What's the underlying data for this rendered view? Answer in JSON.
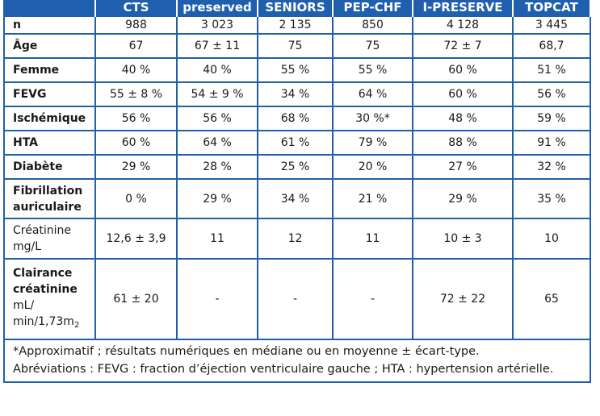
{
  "header": {
    "col1": "CTS",
    "col2_line1": "",
    "col2_line2": "preserved",
    "col3": "SENIORS",
    "col4": "PEP-CHF",
    "col5": "I-PRESERVE",
    "col6": "TOPCAT"
  },
  "rows": [
    {
      "label": "n",
      "values": [
        "988",
        "3 023",
        "2 135",
        "850",
        "4 128",
        "3 445"
      ]
    },
    {
      "label": "Âge",
      "values": [
        "67",
        "67 ± 11",
        "75",
        "75",
        "72 ± 7",
        "68,7"
      ]
    },
    {
      "label": "Femme",
      "values": [
        "40 %",
        "40 %",
        "55 %",
        "55 %",
        "60 %",
        "51 %"
      ]
    },
    {
      "label": "FEVG",
      "values": [
        "55 ± 8 %",
        "54 ± 9 %",
        "34 %",
        "64 %",
        "60 %",
        "56 %"
      ]
    },
    {
      "label": "Ischémique",
      "values": [
        "56 %",
        "56 %",
        "68 %",
        "30 %*",
        "48 %",
        "59 %"
      ]
    },
    {
      "label": "HTA",
      "values": [
        "60 %",
        "64 %",
        "61 %",
        "79 %",
        "88 %",
        "91 %"
      ]
    },
    {
      "label": "Diabète",
      "values": [
        "29 %",
        "28 %",
        "25 %",
        "20 %",
        "27 %",
        "32 %"
      ]
    },
    {
      "label_line1": "Fibrillation",
      "label_line2": "auriculaire",
      "values": [
        "0 %",
        "29 %",
        "34 %",
        "21 %",
        "29 %",
        "35 %"
      ]
    },
    {
      "label_line1": "Créatinine",
      "label_line2": "mg/L",
      "values": [
        "12,6 ± 3,9",
        "11",
        "12",
        "11",
        "10 ± 3",
        "10"
      ]
    },
    {
      "label_line1": "Clairance",
      "label_line2": "créatinine",
      "label_line3": "mL/",
      "label_line4": "min/1,73m",
      "label_sub": "2",
      "values": [
        "61 ± 20",
        "-",
        "-",
        "-",
        "72 ± 22",
        "65"
      ]
    }
  ],
  "footnote": {
    "line1": "*Approximatif ; résultats numériques en médiane ou en moyenne ± écart-type.",
    "line2": "Abréviations : FEVG : fraction d’éjection ventriculaire gauche ; HTA : hypertension artérielle."
  },
  "colors": {
    "header_blue": "#1f5fad",
    "border_blue": "#1f5fad"
  }
}
